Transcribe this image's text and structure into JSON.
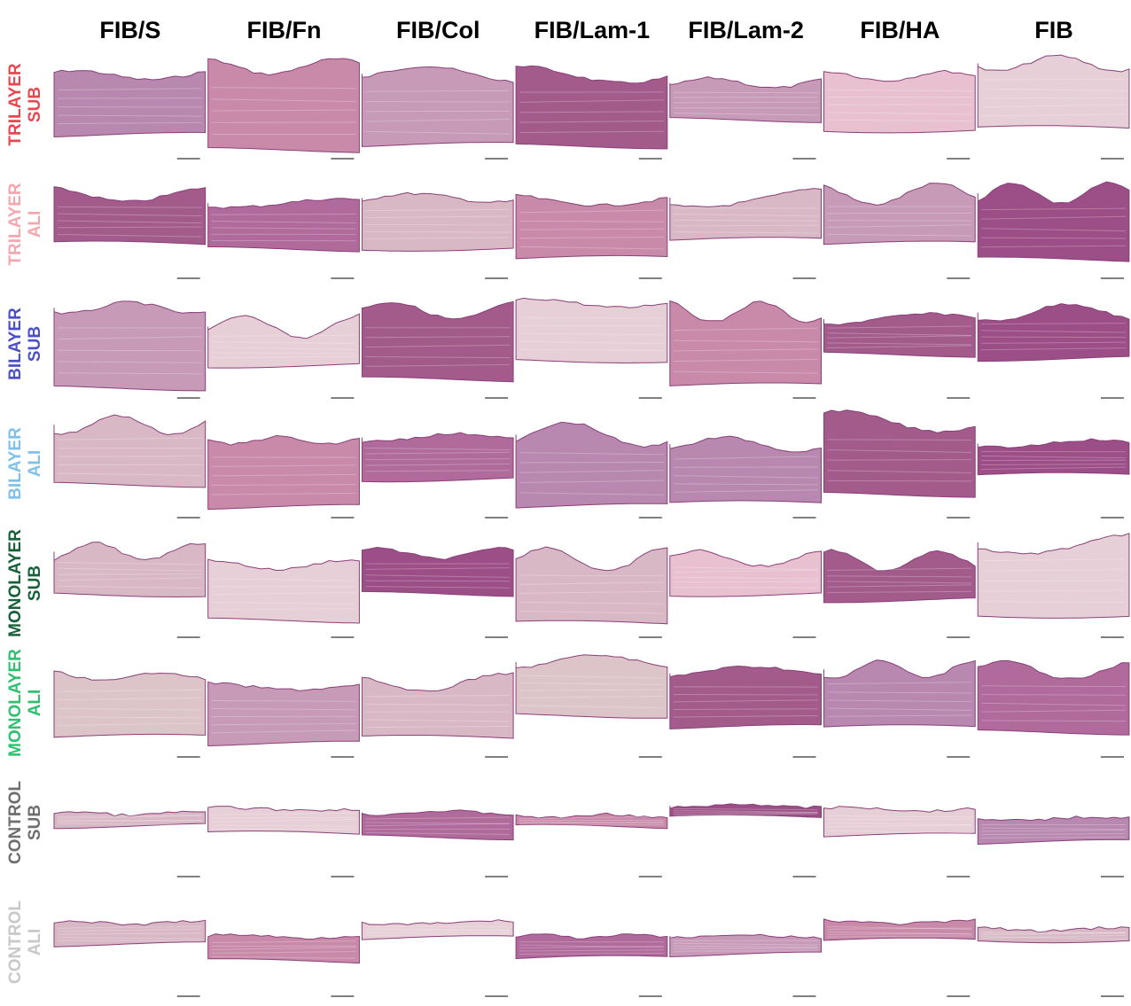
{
  "columns": [
    "FIB/S",
    "FIB/Fn",
    "FIB/Col",
    "FIB/Lam-1",
    "FIB/Lam-2",
    "FIB/HA",
    "FIB"
  ],
  "rows": [
    {
      "line1": "TRILAYER",
      "line2": "SUB",
      "color": "#e8474f"
    },
    {
      "line1": "TRILAYER",
      "line2": "ALI",
      "color": "#f4a7ae"
    },
    {
      "line1": "BILAYER",
      "line2": "SUB",
      "color": "#4b50c8"
    },
    {
      "line1": "BILAYER",
      "line2": "ALI",
      "color": "#7fc1ea"
    },
    {
      "line1": "MONOLAYER",
      "line2": "SUB",
      "color": "#17613a"
    },
    {
      "line1": "MONOLAYER",
      "line2": "ALI",
      "color": "#2fc070"
    },
    {
      "line1": "CONTROL",
      "line2": "SUB",
      "color": "#6e6e6e"
    },
    {
      "line1": "CONTROL",
      "line2": "ALI",
      "color": "#c8c8c8"
    }
  ]
}
